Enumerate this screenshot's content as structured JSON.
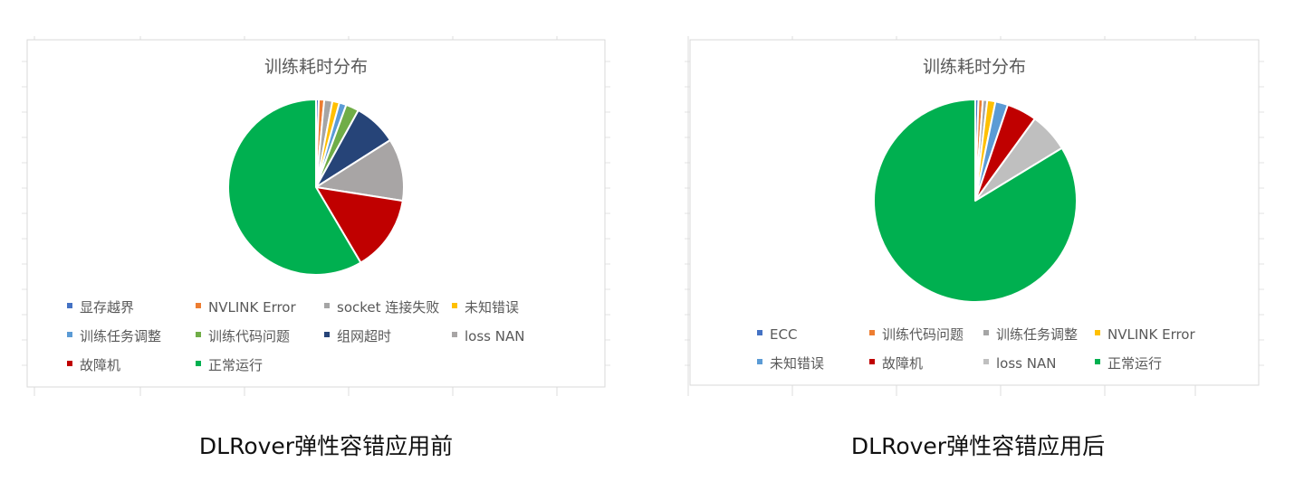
{
  "charts": [
    {
      "caption": "DLRover弹性容错应用前",
      "chart_data": {
        "type": "pie",
        "title": "训练耗时分布",
        "slices": [
          {
            "name": "显存越界",
            "value": 0.5,
            "color": "#4472c4"
          },
          {
            "name": "NVLINK Error",
            "value": 1,
            "color": "#ed7d31"
          },
          {
            "name": "socket 连接失败",
            "value": 1.5,
            "color": "#a5a5a5"
          },
          {
            "name": "未知错误",
            "value": 1.3,
            "color": "#ffc000"
          },
          {
            "name": "训练任务调整",
            "value": 1.3,
            "color": "#5b9bd5"
          },
          {
            "name": "训练代码问题",
            "value": 2.4,
            "color": "#70ad47"
          },
          {
            "name": "组网超时",
            "value": 8,
            "color": "#264478"
          },
          {
            "name": "loss NAN",
            "value": 11.5,
            "color": "#a8a5a5"
          },
          {
            "name": "故障机",
            "value": 14,
            "color": "#c00000"
          },
          {
            "name": "正常运行",
            "value": 58.5,
            "color": "#00b050"
          }
        ],
        "legend_position": "bottom"
      }
    },
    {
      "caption": "DLRover弹性容错应用后",
      "chart_data": {
        "type": "pie",
        "title": "训练耗时分布",
        "slices": [
          {
            "name": "ECC",
            "value": 0.5,
            "color": "#4472c4"
          },
          {
            "name": "训练代码问题",
            "value": 0.7,
            "color": "#ed7d31"
          },
          {
            "name": "训练任务调整",
            "value": 0.7,
            "color": "#a5a5a5"
          },
          {
            "name": "NVLINK Error",
            "value": 1.3,
            "color": "#ffc000"
          },
          {
            "name": "未知错误",
            "value": 2,
            "color": "#5b9bd5"
          },
          {
            "name": "故障机",
            "value": 4.8,
            "color": "#c00000"
          },
          {
            "name": "loss NAN",
            "value": 6.3,
            "color": "#bfbfbf"
          },
          {
            "name": "正常运行",
            "value": 83.7,
            "color": "#00b050"
          }
        ],
        "legend_position": "bottom"
      }
    }
  ]
}
